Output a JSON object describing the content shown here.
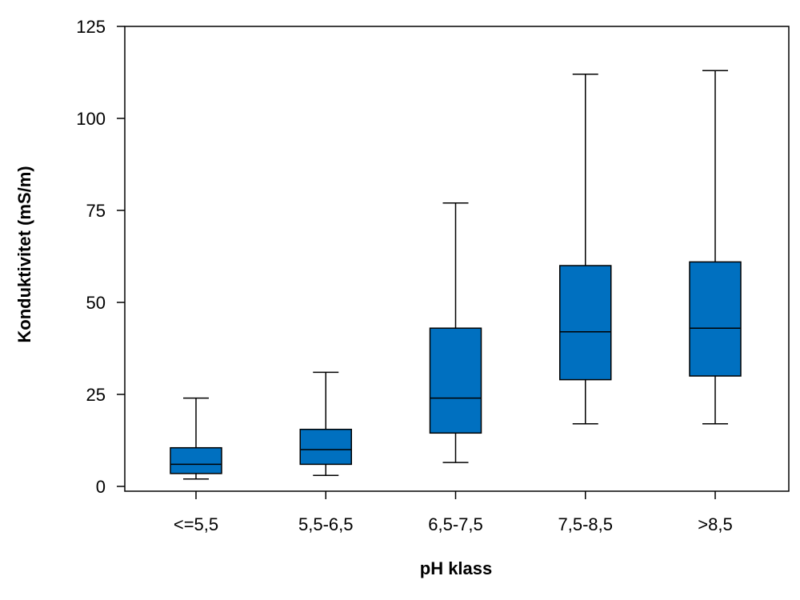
{
  "chart_data": {
    "type": "boxplot",
    "xlabel": "pH klass",
    "ylabel": "Konduktivitet (mS/m)",
    "ylim": [
      0,
      125
    ],
    "yticks": [
      "0",
      "25",
      "50",
      "75",
      "100",
      "125"
    ],
    "categories": [
      "<=5,5",
      "5,5-6,5",
      "6,5-7,5",
      "7,5-8,5",
      ">8,5"
    ],
    "boxes": [
      {
        "min": 2,
        "q1": 3.5,
        "median": 6,
        "q3": 10.5,
        "max": 24
      },
      {
        "min": 3,
        "q1": 6,
        "median": 10,
        "q3": 15.5,
        "max": 31
      },
      {
        "min": 6.5,
        "q1": 14.5,
        "median": 24,
        "q3": 43,
        "max": 77
      },
      {
        "min": 17,
        "q1": 29,
        "median": 42,
        "q3": 60,
        "max": 112
      },
      {
        "min": 17,
        "q1": 30,
        "median": 43,
        "q3": 61,
        "max": 113
      }
    ],
    "box_color": "#0070C0",
    "grid": false
  }
}
